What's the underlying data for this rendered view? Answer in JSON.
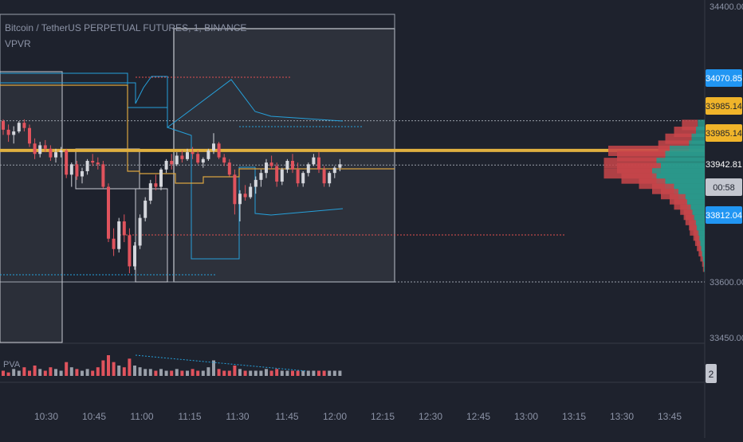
{
  "chart_data": {
    "type": "candlestick",
    "symbol_title": "Bitcoin / TetherUS PERPETUAL FUTURES, 1, BINANCE",
    "indicator_label": "VPVR",
    "volume_label": "PVA",
    "price_axis": {
      "ticks": [
        "34400.00",
        "33600.00",
        "33450.00"
      ],
      "range": [
        33430,
        34420
      ]
    },
    "time_axis": {
      "ticks": [
        "10:30",
        "10:45",
        "11:00",
        "11:15",
        "11:30",
        "11:45",
        "12:00",
        "12:15",
        "12:30",
        "12:45",
        "13:00",
        "13:15",
        "13:30",
        "13:45"
      ]
    },
    "price_badges": [
      {
        "label": "34070.85",
        "price": 34070.85,
        "color": "#2196f3"
      },
      {
        "label": "33985.14",
        "price": 34022,
        "color": "#f0b42a"
      },
      {
        "label": "33985.14",
        "price": 33985.14,
        "color": "#f0b42a"
      },
      {
        "label": "33942.81",
        "price": 33942.81,
        "color": "#1e222d"
      },
      {
        "label": "00:58",
        "price": 33912,
        "color": "#c3c6cf"
      },
      {
        "label": "33812.04",
        "price": 33812.04,
        "color": "#2196f3"
      }
    ],
    "volume_scale_badge": "2",
    "poc_price": 33985.14,
    "current_price": 33942.81,
    "candles": [
      [
        34070,
        34075,
        34030,
        34045
      ],
      [
        34045,
        34060,
        34010,
        34030
      ],
      [
        34030,
        34055,
        34005,
        34040
      ],
      [
        34040,
        34070,
        34035,
        34065
      ],
      [
        34065,
        34075,
        34040,
        34050
      ],
      [
        34050,
        34060,
        33995,
        34005
      ],
      [
        34005,
        34020,
        33960,
        33975
      ],
      [
        33975,
        34010,
        33965,
        34000
      ],
      [
        34000,
        34015,
        33980,
        33990
      ],
      [
        33990,
        34000,
        33955,
        33965
      ],
      [
        33965,
        33990,
        33950,
        33980
      ],
      [
        33980,
        33995,
        33965,
        33985
      ],
      [
        33985,
        33990,
        33905,
        33915
      ],
      [
        33915,
        33950,
        33880,
        33945
      ],
      [
        33945,
        33955,
        33900,
        33910
      ],
      [
        33910,
        33935,
        33890,
        33925
      ],
      [
        33925,
        33960,
        33915,
        33955
      ],
      [
        33955,
        33975,
        33940,
        33950
      ],
      [
        33950,
        33965,
        33930,
        33945
      ],
      [
        33945,
        33955,
        33875,
        33880
      ],
      [
        33880,
        33890,
        33720,
        33730
      ],
      [
        33730,
        33760,
        33680,
        33700
      ],
      [
        33700,
        33790,
        33690,
        33780
      ],
      [
        33780,
        33800,
        33720,
        33740
      ],
      [
        33740,
        33760,
        33630,
        33650
      ],
      [
        33650,
        33720,
        33640,
        33710
      ],
      [
        33710,
        33800,
        33700,
        33790
      ],
      [
        33790,
        33850,
        33780,
        33840
      ],
      [
        33840,
        33900,
        33830,
        33890
      ],
      [
        33890,
        33915,
        33870,
        33880
      ],
      [
        33880,
        33935,
        33870,
        33930
      ],
      [
        33930,
        33960,
        33920,
        33955
      ],
      [
        33955,
        33975,
        33930,
        33945
      ],
      [
        33945,
        33980,
        33940,
        33970
      ],
      [
        33970,
        33985,
        33950,
        33960
      ],
      [
        33960,
        33990,
        33955,
        33980
      ],
      [
        33980,
        33995,
        33960,
        33975
      ],
      [
        33975,
        33985,
        33945,
        33950
      ],
      [
        33950,
        33965,
        33935,
        33960
      ],
      [
        33960,
        33990,
        33955,
        33985
      ],
      [
        33985,
        34035,
        33975,
        34005
      ],
      [
        34005,
        34010,
        33960,
        33965
      ],
      [
        33965,
        33975,
        33940,
        33950
      ],
      [
        33950,
        33960,
        33910,
        33915
      ],
      [
        33915,
        33930,
        33800,
        33830
      ],
      [
        33830,
        33870,
        33780,
        33860
      ],
      [
        33860,
        33885,
        33840,
        33850
      ],
      [
        33850,
        33890,
        33845,
        33880
      ],
      [
        33880,
        33910,
        33860,
        33900
      ],
      [
        33900,
        33930,
        33880,
        33920
      ],
      [
        33920,
        33960,
        33905,
        33950
      ],
      [
        33950,
        33970,
        33930,
        33940
      ],
      [
        33940,
        33950,
        33880,
        33895
      ],
      [
        33895,
        33935,
        33885,
        33930
      ],
      [
        33930,
        33960,
        33920,
        33955
      ],
      [
        33955,
        33975,
        33920,
        33930
      ],
      [
        33930,
        33950,
        33880,
        33890
      ],
      [
        33890,
        33925,
        33880,
        33920
      ],
      [
        33920,
        33950,
        33910,
        33945
      ],
      [
        33945,
        33975,
        33940,
        33965
      ],
      [
        33965,
        33980,
        33920,
        33930
      ],
      [
        33930,
        33940,
        33880,
        33890
      ],
      [
        33890,
        33925,
        33880,
        33920
      ],
      [
        33920,
        33940,
        33905,
        33935
      ],
      [
        33935,
        33960,
        33925,
        33945
      ]
    ],
    "volumes": [
      3,
      2,
      4,
      3,
      5,
      3,
      6,
      4,
      3,
      5,
      4,
      3,
      8,
      5,
      4,
      3,
      4,
      3,
      5,
      9,
      12,
      8,
      6,
      5,
      10,
      6,
      5,
      4,
      4,
      3,
      4,
      3,
      3,
      4,
      3,
      3,
      4,
      3,
      3,
      5,
      9,
      4,
      3,
      3,
      6,
      4,
      3,
      3,
      3,
      3,
      4,
      3,
      4,
      3,
      3,
      3,
      3,
      3,
      3,
      3,
      3,
      3,
      3,
      3,
      3
    ],
    "volume_profile": [
      [
        34060,
        0.18,
        0.08
      ],
      [
        34040,
        0.25,
        0.1
      ],
      [
        34020,
        0.3,
        0.15
      ],
      [
        34000,
        0.35,
        0.18
      ],
      [
        33985,
        0.7,
        0.4
      ],
      [
        33970,
        0.55,
        0.45
      ],
      [
        33950,
        0.6,
        0.55
      ],
      [
        33935,
        0.5,
        0.5
      ],
      [
        33920,
        0.55,
        0.6
      ],
      [
        33905,
        0.4,
        0.55
      ],
      [
        33890,
        0.3,
        0.45
      ],
      [
        33875,
        0.25,
        0.35
      ],
      [
        33860,
        0.2,
        0.3
      ],
      [
        33845,
        0.18,
        0.22
      ],
      [
        33830,
        0.15,
        0.2
      ],
      [
        33815,
        0.12,
        0.16
      ],
      [
        33800,
        0.1,
        0.14
      ],
      [
        33785,
        0.1,
        0.12
      ],
      [
        33770,
        0.08,
        0.1
      ],
      [
        33755,
        0.08,
        0.09
      ],
      [
        33740,
        0.06,
        0.07
      ],
      [
        33725,
        0.05,
        0.06
      ],
      [
        33710,
        0.04,
        0.05
      ],
      [
        33695,
        0.03,
        0.04
      ],
      [
        33680,
        0.02,
        0.03
      ],
      [
        33665,
        0.01,
        0.02
      ],
      [
        33650,
        0.01,
        0.01
      ]
    ]
  }
}
